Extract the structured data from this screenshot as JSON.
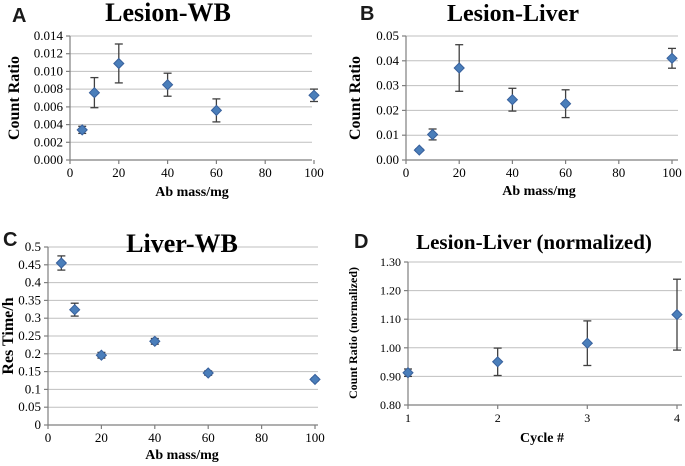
{
  "figure": {
    "background": "#ffffff",
    "marker_color": "#4A7EBA",
    "marker_edge_color": "#38609C",
    "error_bar_color": "#404040",
    "gridline_color": "#BFBFBF",
    "axis_color": "#7F7F7F",
    "text_color": "#000000"
  },
  "chart_data": [
    {
      "panel_letter": "A",
      "type": "scatter",
      "title": "Lesion-WB",
      "xlabel": "Ab mass/mg",
      "ylabel": "Count Ratio",
      "xlim": [
        0,
        100
      ],
      "ylim": [
        0,
        0.014
      ],
      "grid": true,
      "legend": null,
      "xticks": [
        0,
        20,
        40,
        60,
        80,
        100
      ],
      "xtick_labels": [
        "0",
        "20",
        "40",
        "60",
        "80",
        "100"
      ],
      "yticks": [
        0,
        0.002,
        0.004,
        0.006,
        0.008,
        0.01,
        0.012,
        0.014
      ],
      "ytick_labels": [
        "0.000",
        "0.002",
        "0.004",
        "0.006",
        "0.008",
        "0.010",
        "0.012",
        "0.014"
      ],
      "points": [
        {
          "x": 5,
          "y": 0.0034,
          "err": 0.0004
        },
        {
          "x": 10,
          "y": 0.0076,
          "err": 0.0017
        },
        {
          "x": 20,
          "y": 0.0109,
          "err": 0.0022
        },
        {
          "x": 40,
          "y": 0.0085,
          "err": 0.0013
        },
        {
          "x": 60,
          "y": 0.0056,
          "err": 0.0013
        },
        {
          "x": 100,
          "y": 0.0073,
          "err": 0.0007
        }
      ]
    },
    {
      "panel_letter": "B",
      "type": "scatter",
      "title": "Lesion-Liver",
      "xlabel": "Ab mass/mg",
      "ylabel": "Count Ratio",
      "xlim": [
        0,
        100
      ],
      "ylim": [
        0,
        0.05
      ],
      "grid": true,
      "legend": null,
      "xticks": [
        0,
        20,
        40,
        60,
        80,
        100
      ],
      "xtick_labels": [
        "0",
        "20",
        "40",
        "60",
        "80",
        "100"
      ],
      "yticks": [
        0,
        0.01,
        0.02,
        0.03,
        0.04,
        0.05
      ],
      "ytick_labels": [
        "0.00",
        "0.01",
        "0.02",
        "0.03",
        "0.04",
        "0.05"
      ],
      "points": [
        {
          "x": 5,
          "y": 0.004,
          "err": 0.0005
        },
        {
          "x": 10,
          "y": 0.0103,
          "err": 0.0022
        },
        {
          "x": 20,
          "y": 0.0371,
          "err": 0.0094
        },
        {
          "x": 40,
          "y": 0.0243,
          "err": 0.0046
        },
        {
          "x": 60,
          "y": 0.0227,
          "err": 0.0056
        },
        {
          "x": 100,
          "y": 0.041,
          "err": 0.004
        }
      ]
    },
    {
      "panel_letter": "C",
      "type": "scatter",
      "title": "Liver-WB",
      "xlabel": "Ab mass/mg",
      "ylabel": "Res Time/h",
      "xlim": [
        0,
        100
      ],
      "ylim": [
        0,
        0.5
      ],
      "grid": true,
      "legend": null,
      "xticks": [
        0,
        20,
        40,
        60,
        80,
        100
      ],
      "xtick_labels": [
        "0",
        "20",
        "40",
        "60",
        "80",
        "100"
      ],
      "yticks": [
        0,
        0.05,
        0.1,
        0.15,
        0.2,
        0.25,
        0.3,
        0.35,
        0.4,
        0.45,
        0.5
      ],
      "ytick_labels": [
        "0",
        "0.05",
        "0.1",
        "0.15",
        "0.2",
        "0.25",
        "0.3",
        "0.35",
        "0.4",
        "0.45",
        "0.5"
      ],
      "points": [
        {
          "x": 5,
          "y": 0.455,
          "err": 0.02
        },
        {
          "x": 10,
          "y": 0.324,
          "err": 0.018
        },
        {
          "x": 20,
          "y": 0.196,
          "err": 0.008
        },
        {
          "x": 40,
          "y": 0.235,
          "err": 0.008
        },
        {
          "x": 60,
          "y": 0.146,
          "err": 0.006
        },
        {
          "x": 100,
          "y": 0.128,
          "err": 0.004
        }
      ]
    },
    {
      "panel_letter": "D",
      "type": "scatter",
      "title": "Lesion-Liver (normalized)",
      "xlabel": "Cycle #",
      "ylabel": "Count Ratio (normalized)",
      "xlim": [
        1,
        4
      ],
      "ylim": [
        0.8,
        1.3
      ],
      "grid": true,
      "legend": null,
      "xticks": [
        1,
        2,
        3,
        4
      ],
      "xtick_labels": [
        "1",
        "2",
        "3",
        "4"
      ],
      "yticks": [
        0.8,
        0.9,
        1.0,
        1.1,
        1.2,
        1.3
      ],
      "ytick_labels": [
        "0.80",
        "0.90",
        "1.00",
        "1.10",
        "1.20",
        "1.30"
      ],
      "points": [
        {
          "x": 1,
          "y": 0.913,
          "err": 0.013
        },
        {
          "x": 2,
          "y": 0.951,
          "err": 0.048
        },
        {
          "x": 3,
          "y": 1.016,
          "err": 0.078
        },
        {
          "x": 4,
          "y": 1.116,
          "err": 0.124
        }
      ]
    }
  ]
}
